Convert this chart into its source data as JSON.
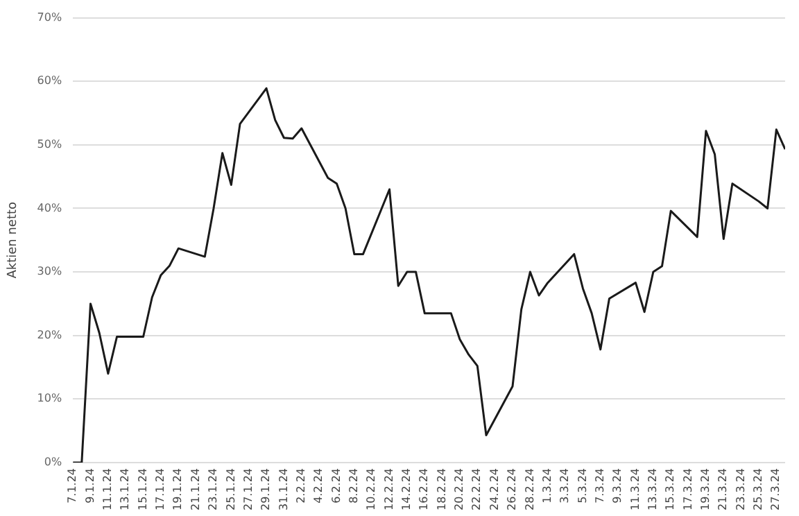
{
  "chart_data": {
    "type": "line",
    "ylabel": "Aktien netto",
    "x": [
      "--01-07",
      "--01-08",
      "--01-09",
      "--01-10",
      "--01-11",
      "--01-12",
      "--01-15",
      "--01-16",
      "--01-17",
      "--01-18",
      "--01-19",
      "--01-22",
      "--01-23",
      "--01-24",
      "--01-25",
      "--01-26",
      "--01-29",
      "--01-30",
      "--01-31",
      "--02-01",
      "--02-02",
      "--02-05",
      "--02-06",
      "--02-07",
      "--02-08",
      "--02-09",
      "--02-12",
      "--02-13",
      "--02-14",
      "--02-15",
      "--02-16",
      "--02-19",
      "--02-20",
      "--02-21",
      "--02-22",
      "--02-23",
      "--02-26",
      "--02-27",
      "--02-28",
      "--02-29",
      "--03-01",
      "--03-04",
      "--03-05",
      "--03-06",
      "--03-07",
      "--03-08",
      "--03-11",
      "--03-12",
      "--03-13",
      "--03-14",
      "--03-15",
      "--03-18",
      "--03-19",
      "--03-20",
      "--03-21",
      "--03-22",
      "--03-25",
      "--03-26",
      "--03-27",
      "--03-28"
    ],
    "series": [
      {
        "color": "#1a1a1a",
        "values": [
          0,
          0,
          25,
          20.4,
          14,
          19.8,
          19.8,
          26,
          29.5,
          31,
          33.7,
          32.4,
          40,
          48.7,
          43.7,
          53.3,
          58.9,
          53.9,
          51.1,
          51,
          52.6,
          44.8,
          43.9,
          40,
          32.8,
          32.8,
          43,
          27.8,
          30,
          30,
          23.5,
          23.5,
          19.4,
          17,
          15.2,
          4.3,
          12,
          24.1,
          30,
          26.3,
          28.3,
          32.8,
          27.4,
          23.5,
          17.8,
          25.8,
          28.3,
          23.7,
          30,
          30.9,
          39.6,
          35.5,
          52.2,
          48.5,
          35.2,
          43.9,
          41.1,
          40,
          52.4,
          49.3
        ]
      }
    ],
    "xlim": [
      "--01-07",
      "--03-28"
    ],
    "xticks": [
      {
        "value": "--01-07",
        "label": "7.1.24"
      },
      {
        "value": "--01-09",
        "label": "9.1.24"
      },
      {
        "value": "--01-11",
        "label": "11.1.24"
      },
      {
        "value": "--01-13",
        "label": "13.1.24"
      },
      {
        "value": "--01-15",
        "label": "15.1.24"
      },
      {
        "value": "--01-17",
        "label": "17.1.24"
      },
      {
        "value": "--01-19",
        "label": "19.1.24"
      },
      {
        "value": "--01-21",
        "label": "21.1.24"
      },
      {
        "value": "--01-23",
        "label": "23.1.24"
      },
      {
        "value": "--01-25",
        "label": "25.1.24"
      },
      {
        "value": "--01-27",
        "label": "27.1.24"
      },
      {
        "value": "--01-29",
        "label": "29.1.24"
      },
      {
        "value": "--01-31",
        "label": "31.1.24"
      },
      {
        "value": "--02-02",
        "label": "2.2.24"
      },
      {
        "value": "--02-04",
        "label": "4.2.24"
      },
      {
        "value": "--02-06",
        "label": "6.2.24"
      },
      {
        "value": "--02-08",
        "label": "8.2.24"
      },
      {
        "value": "--02-10",
        "label": "10.2.24"
      },
      {
        "value": "--02-12",
        "label": "12.2.24"
      },
      {
        "value": "--02-14",
        "label": "14.2.24"
      },
      {
        "value": "--02-16",
        "label": "16.2.24"
      },
      {
        "value": "--02-18",
        "label": "18.2.24"
      },
      {
        "value": "--02-20",
        "label": "20.2.24"
      },
      {
        "value": "--02-22",
        "label": "22.2.24"
      },
      {
        "value": "--02-24",
        "label": "24.2.24"
      },
      {
        "value": "--02-26",
        "label": "26.2.24"
      },
      {
        "value": "--02-28",
        "label": "28.2.24"
      },
      {
        "value": "--03-01",
        "label": "1.3.24"
      },
      {
        "value": "--03-03",
        "label": "3.3.24"
      },
      {
        "value": "--03-05",
        "label": "5.3.24"
      },
      {
        "value": "--03-07",
        "label": "7.3.24"
      },
      {
        "value": "--03-09",
        "label": "9.3.24"
      },
      {
        "value": "--03-11",
        "label": "11.3.24"
      },
      {
        "value": "--03-13",
        "label": "13.3.24"
      },
      {
        "value": "--03-15",
        "label": "15.3.24"
      },
      {
        "value": "--03-17",
        "label": "17.3.24"
      },
      {
        "value": "--03-19",
        "label": "19.3.24"
      },
      {
        "value": "--03-21",
        "label": "21.3.24"
      },
      {
        "value": "--03-23",
        "label": "23.3.24"
      },
      {
        "value": "--03-25",
        "label": "25.3.24"
      },
      {
        "value": "--03-27",
        "label": "27.3.24"
      }
    ],
    "ylim": [
      0,
      70
    ],
    "yticks": [
      {
        "value": 0,
        "label": "0%"
      },
      {
        "value": 10,
        "label": "10%"
      },
      {
        "value": 20,
        "label": "20%"
      },
      {
        "value": 30,
        "label": "30%"
      },
      {
        "value": 40,
        "label": "40%"
      },
      {
        "value": 50,
        "label": "50%"
      },
      {
        "value": 60,
        "label": "60%"
      },
      {
        "value": 70,
        "label": "70%"
      }
    ],
    "grid": "y",
    "marker": "none",
    "line_style": "solid"
  }
}
